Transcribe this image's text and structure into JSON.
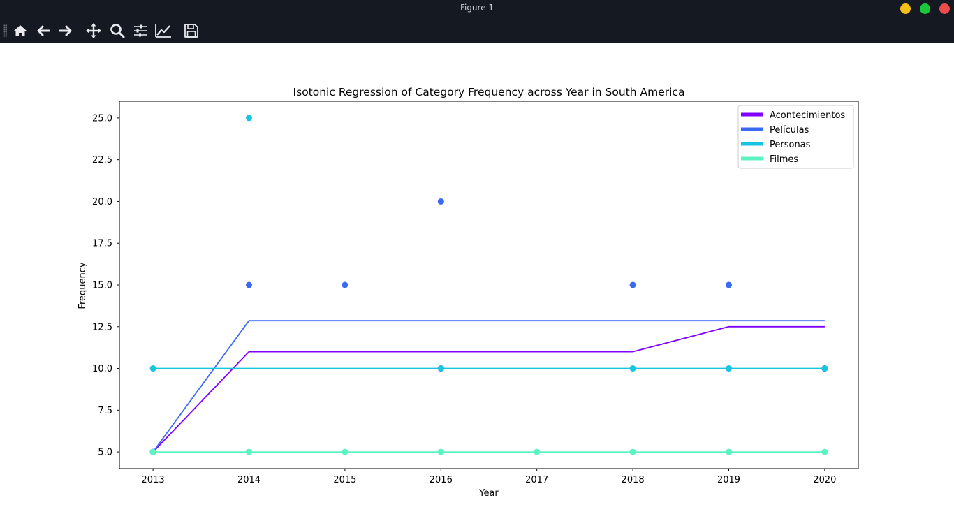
{
  "window": {
    "title": "Figure 1"
  },
  "toolbar": {
    "tools": [
      {
        "name": "home-icon"
      },
      {
        "name": "back-arrow-icon"
      },
      {
        "name": "forward-arrow-icon"
      },
      {
        "name": "pan-move-icon"
      },
      {
        "name": "zoom-magnifier-icon"
      },
      {
        "name": "configure-subplots-icon"
      },
      {
        "name": "edit-axis-line-icon"
      },
      {
        "name": "save-floppy-icon"
      }
    ]
  },
  "chart_data": {
    "type": "line",
    "title": "Isotonic Regression of Category Frequency across Year in South America",
    "xlabel": "Year",
    "ylabel": "Frequency",
    "x_ticks": [
      "2013",
      "2014",
      "2015",
      "2016",
      "2017",
      "2018",
      "2019",
      "2020"
    ],
    "y_ticks": [
      "5.0",
      "7.5",
      "10.0",
      "12.5",
      "15.0",
      "17.5",
      "20.0",
      "22.5",
      "25.0"
    ],
    "xlim": [
      2012.65,
      2020.35
    ],
    "ylim": [
      4.0,
      26.0
    ],
    "legend_position": "top-right",
    "series": [
      {
        "name": "Acontecimientos",
        "color": "#8000ff",
        "fit": [
          [
            2013,
            5.0
          ],
          [
            2014,
            11.0
          ],
          [
            2015,
            11.0
          ],
          [
            2016,
            11.0
          ],
          [
            2017,
            11.0
          ],
          [
            2018,
            11.0
          ],
          [
            2019,
            12.5
          ],
          [
            2020,
            12.5
          ]
        ],
        "points": [
          [
            2013,
            5
          ],
          [
            2016,
            10
          ],
          [
            2020,
            10
          ]
        ]
      },
      {
        "name": "Películas",
        "color": "#3a6af4",
        "fit": [
          [
            2013,
            5.0
          ],
          [
            2014,
            12.86
          ],
          [
            2015,
            12.86
          ],
          [
            2016,
            12.86
          ],
          [
            2017,
            12.86
          ],
          [
            2018,
            12.86
          ],
          [
            2019,
            12.86
          ],
          [
            2020,
            12.86
          ]
        ],
        "points": [
          [
            2013,
            5
          ],
          [
            2014,
            15
          ],
          [
            2015,
            15
          ],
          [
            2016,
            20
          ],
          [
            2018,
            15
          ],
          [
            2019,
            15
          ],
          [
            2020,
            10
          ]
        ]
      },
      {
        "name": "Personas",
        "color": "#18c4e0",
        "fit": [
          [
            2013,
            10.0
          ],
          [
            2014,
            10.0
          ],
          [
            2015,
            10.0
          ],
          [
            2016,
            10.0
          ],
          [
            2017,
            10.0
          ],
          [
            2018,
            10.0
          ],
          [
            2019,
            10.0
          ],
          [
            2020,
            10.0
          ]
        ],
        "points": [
          [
            2013,
            10
          ],
          [
            2014,
            25
          ],
          [
            2016,
            10
          ],
          [
            2018,
            10
          ],
          [
            2019,
            10
          ],
          [
            2020,
            10
          ]
        ]
      },
      {
        "name": "Filmes",
        "color": "#5cf3c3",
        "fit": [
          [
            2013,
            5.0
          ],
          [
            2014,
            5.0
          ],
          [
            2015,
            5.0
          ],
          [
            2016,
            5.0
          ],
          [
            2017,
            5.0
          ],
          [
            2018,
            5.0
          ],
          [
            2019,
            5.0
          ],
          [
            2020,
            5.0
          ]
        ],
        "points": [
          [
            2013,
            5
          ],
          [
            2014,
            5
          ],
          [
            2015,
            5
          ],
          [
            2016,
            5
          ],
          [
            2017,
            5
          ],
          [
            2018,
            5
          ],
          [
            2019,
            5
          ],
          [
            2020,
            5
          ]
        ]
      }
    ]
  }
}
